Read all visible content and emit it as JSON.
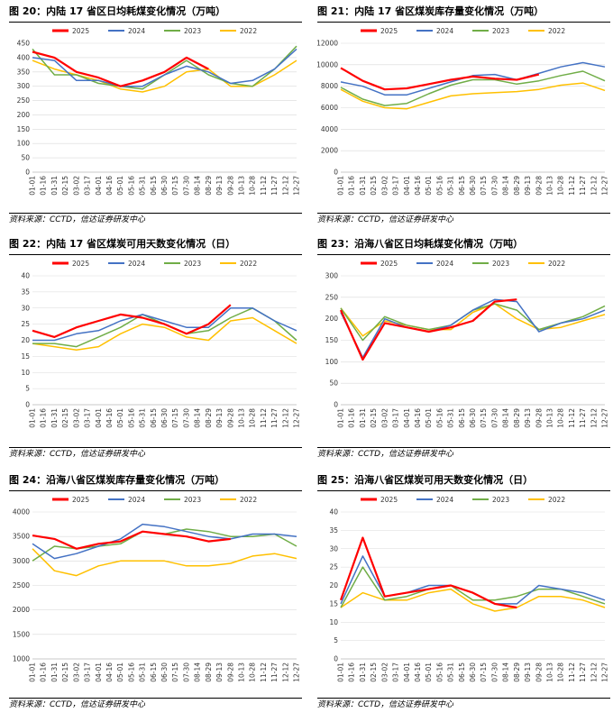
{
  "source_text": "资料来源：CCTD，信达证券研发中心",
  "colors": {
    "2025": "#ff0000",
    "2024": "#4472c4",
    "2023": "#70ad47",
    "2022": "#ffc000"
  },
  "x_ticks": [
    "01-01",
    "01-16",
    "01-31",
    "02-15",
    "03-02",
    "03-17",
    "04-01",
    "04-16",
    "05-01",
    "05-16",
    "05-31",
    "06-15",
    "06-30",
    "07-15",
    "07-30",
    "08-14",
    "08-29",
    "09-13",
    "09-28",
    "10-13",
    "10-28",
    "11-12",
    "11-27",
    "12-12",
    "12-27"
  ],
  "charts": [
    {
      "title": "图 20：内陆 17 省区日均耗煤变化情况（万吨）"
    },
    {
      "title": "图 21：内陆 17 省区煤炭库存量变化情况（万吨）"
    },
    {
      "title": "图 22：内陆 17 省区煤炭可用天数变化情况（日）"
    },
    {
      "title": "图 23：沿海八省区日均耗煤变化情况（万吨）"
    },
    {
      "title": "图 24：沿海八省区煤炭库存量变化情况（万吨）"
    },
    {
      "title": "图 25：沿海八省区煤炭可用天数变化情况（日）"
    }
  ],
  "chart_data": [
    {
      "type": "line",
      "title": "图 20：内陆 17 省区日均耗煤变化情况（万吨）",
      "ylim": [
        0,
        450
      ],
      "yticks": [
        0,
        50,
        100,
        150,
        200,
        250,
        300,
        350,
        400,
        450
      ],
      "x": [
        "01-01",
        "01-31",
        "03-02",
        "04-01",
        "05-01",
        "05-31",
        "06-30",
        "07-30",
        "08-29",
        "09-28",
        "10-28",
        "11-27",
        "12-27"
      ],
      "series": [
        {
          "name": "2025",
          "values": [
            420,
            400,
            350,
            330,
            300,
            320,
            350,
            400,
            360,
            null,
            null,
            null,
            null
          ]
        },
        {
          "name": "2024",
          "values": [
            400,
            390,
            320,
            320,
            300,
            300,
            340,
            370,
            350,
            310,
            320,
            360,
            430
          ]
        },
        {
          "name": "2023",
          "values": [
            430,
            340,
            340,
            310,
            300,
            290,
            340,
            390,
            340,
            310,
            300,
            360,
            440
          ]
        },
        {
          "name": "2022",
          "values": [
            390,
            360,
            340,
            320,
            290,
            280,
            300,
            350,
            360,
            300,
            300,
            340,
            390
          ]
        }
      ]
    },
    {
      "type": "line",
      "title": "图 21：内陆 17 省区煤炭库存量变化情况（万吨）",
      "ylim": [
        0,
        12000
      ],
      "yticks": [
        0,
        2000,
        4000,
        6000,
        8000,
        10000,
        12000
      ],
      "x": [
        "01-01",
        "01-31",
        "03-02",
        "04-01",
        "05-01",
        "05-31",
        "06-30",
        "07-30",
        "08-29",
        "09-28",
        "10-28",
        "11-27",
        "12-27"
      ],
      "series": [
        {
          "name": "2025",
          "values": [
            9700,
            8500,
            7700,
            7800,
            8200,
            8600,
            8900,
            8700,
            8600,
            9100,
            null,
            null,
            null
          ]
        },
        {
          "name": "2024",
          "values": [
            8400,
            8000,
            7200,
            7200,
            7800,
            8400,
            9000,
            9100,
            8600,
            9200,
            9800,
            10200,
            9800
          ]
        },
        {
          "name": "2023",
          "values": [
            7900,
            6800,
            6200,
            6400,
            7300,
            8100,
            8600,
            8600,
            8200,
            8500,
            9000,
            9400,
            8500
          ]
        },
        {
          "name": "2022",
          "values": [
            7700,
            6600,
            6000,
            5900,
            6500,
            7100,
            7300,
            7400,
            7500,
            7700,
            8100,
            8300,
            7600
          ]
        }
      ]
    },
    {
      "type": "line",
      "title": "图 22：内陆 17 省区煤炭可用天数变化情况（日）",
      "ylim": [
        0,
        40
      ],
      "yticks": [
        0,
        5,
        10,
        15,
        20,
        25,
        30,
        35,
        40
      ],
      "x": [
        "01-01",
        "01-31",
        "03-02",
        "04-01",
        "05-01",
        "05-31",
        "06-30",
        "07-30",
        "08-29",
        "09-28",
        "10-28",
        "11-27",
        "12-27"
      ],
      "series": [
        {
          "name": "2025",
          "values": [
            23,
            21,
            24,
            26,
            28,
            27,
            25,
            22,
            25,
            31,
            null,
            null,
            null
          ]
        },
        {
          "name": "2024",
          "values": [
            20,
            20,
            22,
            23,
            26,
            28,
            26,
            24,
            24,
            30,
            30,
            26,
            23
          ]
        },
        {
          "name": "2023",
          "values": [
            19,
            19,
            18,
            21,
            24,
            28,
            25,
            22,
            23,
            27,
            30,
            26,
            20
          ]
        },
        {
          "name": "2022",
          "values": [
            19,
            18,
            17,
            18,
            22,
            25,
            24,
            21,
            20,
            26,
            27,
            23,
            19
          ]
        }
      ]
    },
    {
      "type": "line",
      "title": "图 23：沿海八省区日均耗煤变化情况（万吨）",
      "ylim": [
        0,
        300
      ],
      "yticks": [
        0,
        50,
        100,
        150,
        200,
        250,
        300
      ],
      "x": [
        "01-01",
        "01-31",
        "03-02",
        "04-01",
        "05-01",
        "05-31",
        "06-30",
        "07-30",
        "08-29",
        "09-28",
        "10-28",
        "11-27",
        "12-27"
      ],
      "series": [
        {
          "name": "2025",
          "values": [
            220,
            105,
            190,
            180,
            170,
            180,
            195,
            240,
            245,
            null,
            null,
            null,
            null
          ]
        },
        {
          "name": "2024",
          "values": [
            215,
            110,
            200,
            180,
            170,
            185,
            220,
            245,
            240,
            170,
            190,
            200,
            220
          ]
        },
        {
          "name": "2023",
          "values": [
            225,
            150,
            205,
            185,
            175,
            185,
            220,
            235,
            220,
            175,
            190,
            205,
            230
          ]
        },
        {
          "name": "2022",
          "values": [
            225,
            160,
            195,
            185,
            175,
            175,
            215,
            235,
            200,
            175,
            180,
            195,
            210
          ]
        }
      ]
    },
    {
      "type": "line",
      "title": "图 24：沿海八省区煤炭库存量变化情况（万吨）",
      "ylim": [
        1000,
        4000
      ],
      "yticks": [
        1000,
        1500,
        2000,
        2500,
        3000,
        3500,
        4000
      ],
      "x": [
        "01-01",
        "01-31",
        "03-02",
        "04-01",
        "05-01",
        "05-31",
        "06-30",
        "07-30",
        "08-29",
        "09-28",
        "10-28",
        "11-27",
        "12-27"
      ],
      "series": [
        {
          "name": "2025",
          "values": [
            3520,
            3450,
            3250,
            3350,
            3400,
            3600,
            3550,
            3500,
            3400,
            3450,
            null,
            null,
            null
          ]
        },
        {
          "name": "2024",
          "values": [
            3350,
            3050,
            3150,
            3300,
            3450,
            3750,
            3700,
            3600,
            3500,
            3450,
            3550,
            3550,
            3500
          ]
        },
        {
          "name": "2023",
          "values": [
            3000,
            3300,
            3250,
            3300,
            3350,
            3600,
            3550,
            3650,
            3600,
            3500,
            3500,
            3550,
            3300
          ]
        },
        {
          "name": "2022",
          "values": [
            3250,
            2800,
            2700,
            2900,
            3000,
            3000,
            3000,
            2900,
            2900,
            2950,
            3100,
            3150,
            3050
          ]
        }
      ]
    },
    {
      "type": "line",
      "title": "图 25：沿海八省区煤炭可用天数变化情况（日）",
      "ylim": [
        0,
        40
      ],
      "yticks": [
        0,
        5,
        10,
        15,
        20,
        25,
        30,
        35,
        40
      ],
      "x": [
        "01-01",
        "01-31",
        "03-02",
        "04-01",
        "05-01",
        "05-31",
        "06-30",
        "07-30",
        "08-29",
        "09-28",
        "10-28",
        "11-27",
        "12-27"
      ],
      "series": [
        {
          "name": "2025",
          "values": [
            16,
            33,
            17,
            18,
            19,
            20,
            18,
            15,
            14,
            null,
            null,
            null,
            null
          ]
        },
        {
          "name": "2024",
          "values": [
            15,
            28,
            17,
            18,
            20,
            20,
            18,
            15,
            15,
            20,
            19,
            18,
            16
          ]
        },
        {
          "name": "2023",
          "values": [
            14,
            25,
            16,
            17,
            19,
            20,
            16,
            16,
            17,
            19,
            19,
            17,
            15
          ]
        },
        {
          "name": "2022",
          "values": [
            14,
            18,
            16,
            16,
            18,
            19,
            15,
            13,
            14,
            17,
            17,
            16,
            14
          ]
        }
      ]
    }
  ]
}
